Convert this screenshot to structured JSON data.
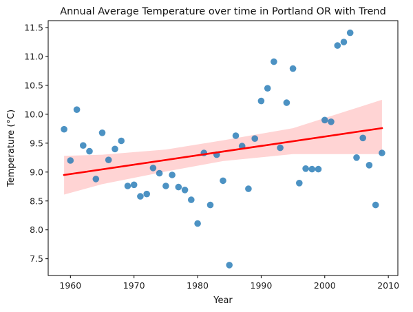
{
  "chart_data": {
    "type": "scatter",
    "title": "Annual Average Temperature over time in Portland OR with Trend",
    "xlabel": "Year",
    "ylabel": "Temperature (°C)",
    "xlim": [
      1956.5,
      2011.5
    ],
    "ylim": [
      7.21,
      11.62
    ],
    "xticks": [
      1960,
      1970,
      1980,
      1990,
      2000,
      2010
    ],
    "xtick_labels": [
      "1960",
      "1970",
      "1980",
      "1990",
      "2000",
      "2010"
    ],
    "yticks": [
      7.5,
      8.0,
      8.5,
      9.0,
      9.5,
      10.0,
      10.5,
      11.0,
      11.5
    ],
    "ytick_labels": [
      "7.5",
      "8.0",
      "8.5",
      "9.0",
      "9.5",
      "10.0",
      "10.5",
      "11.0",
      "11.5"
    ],
    "grid": false,
    "points": {
      "x": [
        1959,
        1960,
        1961,
        1962,
        1963,
        1964,
        1965,
        1966,
        1967,
        1968,
        1969,
        1970,
        1971,
        1972,
        1973,
        1974,
        1975,
        1976,
        1977,
        1978,
        1979,
        1980,
        1981,
        1982,
        1983,
        1984,
        1985,
        1986,
        1987,
        1988,
        1989,
        1990,
        1991,
        1992,
        1993,
        1994,
        1995,
        1996,
        1997,
        1998,
        1999,
        2000,
        2001,
        2002,
        2003,
        2004,
        2005,
        2006,
        2007,
        2008,
        2009
      ],
      "y": [
        9.74,
        9.2,
        10.08,
        9.46,
        9.36,
        8.88,
        9.68,
        9.21,
        9.4,
        9.54,
        8.76,
        8.78,
        8.58,
        8.62,
        9.07,
        8.98,
        8.76,
        8.95,
        8.74,
        8.69,
        8.52,
        8.11,
        9.33,
        8.43,
        9.3,
        8.85,
        7.39,
        9.63,
        9.45,
        8.71,
        9.58,
        10.23,
        10.45,
        10.91,
        9.42,
        10.2,
        10.79,
        8.81,
        9.06,
        9.05,
        9.05,
        9.9,
        9.87,
        11.19,
        11.25,
        11.41,
        9.25,
        9.59,
        9.12,
        8.43,
        9.33
      ],
      "color": "#1f77b4"
    },
    "trend": {
      "x": [
        1959,
        2009
      ],
      "y": [
        8.95,
        9.76
      ],
      "color": "#ff0000"
    },
    "confidence_band": {
      "x": [
        1959,
        1965,
        1975,
        1984,
        1995,
        2009
      ],
      "lower": [
        8.61,
        8.79,
        9.01,
        9.19,
        9.31,
        9.31
      ],
      "upper": [
        9.28,
        9.3,
        9.39,
        9.55,
        9.76,
        10.25
      ],
      "color": "#ff0000",
      "opacity": 0.17
    }
  }
}
